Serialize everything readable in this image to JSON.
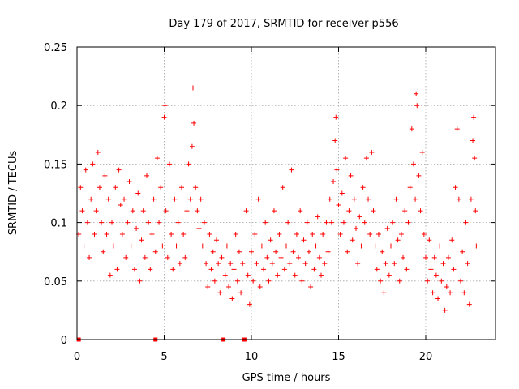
{
  "chart_data": {
    "type": "scatter",
    "title": "Day 179 of 2017, SRMTID for receiver p556",
    "xlabel": "GPS time / hours",
    "ylabel": "SRMTID / TECUs",
    "xlim": [
      0,
      24
    ],
    "ylim": [
      0,
      0.25
    ],
    "xticks": [
      0,
      5,
      10,
      15,
      20
    ],
    "xtick_labels": [
      "0",
      "5",
      "10",
      "15",
      "20"
    ],
    "yticks": [
      0,
      0.05,
      0.1,
      0.15,
      0.2,
      0.25
    ],
    "ytick_labels": [
      "0",
      "0.05",
      "0.1",
      "0.15",
      "0.2",
      "0.25"
    ],
    "grid": true,
    "marker": "+",
    "color": "#ff0000",
    "zero_markers_x": [
      0.1,
      4.5,
      8.4,
      9.6
    ],
    "series": [
      {
        "name": "SRMTID",
        "points": [
          [
            0.1,
            0.09
          ],
          [
            0.2,
            0.13
          ],
          [
            0.3,
            0.11
          ],
          [
            0.4,
            0.08
          ],
          [
            0.5,
            0.145
          ],
          [
            0.6,
            0.1
          ],
          [
            0.7,
            0.07
          ],
          [
            0.8,
            0.12
          ],
          [
            0.9,
            0.15
          ],
          [
            1.0,
            0.09
          ],
          [
            1.1,
            0.11
          ],
          [
            1.2,
            0.16
          ],
          [
            1.3,
            0.13
          ],
          [
            1.4,
            0.1
          ],
          [
            1.5,
            0.075
          ],
          [
            1.6,
            0.14
          ],
          [
            1.7,
            0.09
          ],
          [
            1.8,
            0.12
          ],
          [
            1.9,
            0.055
          ],
          [
            2.0,
            0.1
          ],
          [
            2.1,
            0.08
          ],
          [
            2.2,
            0.13
          ],
          [
            2.3,
            0.06
          ],
          [
            2.4,
            0.145
          ],
          [
            2.5,
            0.115
          ],
          [
            2.6,
            0.09
          ],
          [
            2.7,
            0.12
          ],
          [
            2.8,
            0.07
          ],
          [
            2.9,
            0.1
          ],
          [
            3.0,
            0.135
          ],
          [
            3.1,
            0.08
          ],
          [
            3.2,
            0.11
          ],
          [
            3.3,
            0.06
          ],
          [
            3.4,
            0.095
          ],
          [
            3.5,
            0.125
          ],
          [
            3.6,
            0.05
          ],
          [
            3.7,
            0.085
          ],
          [
            3.8,
            0.11
          ],
          [
            3.9,
            0.07
          ],
          [
            4.0,
            0.14
          ],
          [
            4.1,
            0.1
          ],
          [
            4.2,
            0.06
          ],
          [
            4.3,
            0.09
          ],
          [
            4.4,
            0.12
          ],
          [
            4.5,
            0.075
          ],
          [
            4.6,
            0.155
          ],
          [
            4.7,
            0.1
          ],
          [
            4.8,
            0.13
          ],
          [
            4.9,
            0.08
          ],
          [
            5.0,
            0.19
          ],
          [
            5.05,
            0.2
          ],
          [
            5.1,
            0.11
          ],
          [
            5.2,
            0.07
          ],
          [
            5.3,
            0.15
          ],
          [
            5.4,
            0.09
          ],
          [
            5.5,
            0.06
          ],
          [
            5.6,
            0.12
          ],
          [
            5.7,
            0.08
          ],
          [
            5.8,
            0.1
          ],
          [
            5.9,
            0.065
          ],
          [
            6.0,
            0.13
          ],
          [
            6.1,
            0.09
          ],
          [
            6.2,
            0.07
          ],
          [
            6.3,
            0.11
          ],
          [
            6.4,
            0.15
          ],
          [
            6.5,
            0.12
          ],
          [
            6.6,
            0.165
          ],
          [
            6.65,
            0.215
          ],
          [
            6.7,
            0.185
          ],
          [
            6.8,
            0.13
          ],
          [
            6.9,
            0.11
          ],
          [
            7.0,
            0.095
          ],
          [
            7.1,
            0.12
          ],
          [
            7.2,
            0.08
          ],
          [
            7.3,
            0.1
          ],
          [
            7.4,
            0.065
          ],
          [
            7.5,
            0.045
          ],
          [
            7.6,
            0.09
          ],
          [
            7.7,
            0.06
          ],
          [
            7.8,
            0.075
          ],
          [
            7.9,
            0.05
          ],
          [
            8.0,
            0.085
          ],
          [
            8.1,
            0.065
          ],
          [
            8.2,
            0.04
          ],
          [
            8.3,
            0.07
          ],
          [
            8.5,
            0.055
          ],
          [
            8.6,
            0.08
          ],
          [
            8.7,
            0.045
          ],
          [
            8.8,
            0.065
          ],
          [
            8.9,
            0.035
          ],
          [
            9.0,
            0.06
          ],
          [
            9.1,
            0.09
          ],
          [
            9.2,
            0.05
          ],
          [
            9.3,
            0.075
          ],
          [
            9.4,
            0.04
          ],
          [
            9.5,
            0.065
          ],
          [
            9.7,
            0.11
          ],
          [
            9.8,
            0.055
          ],
          [
            9.9,
            0.03
          ],
          [
            10.0,
            0.075
          ],
          [
            10.1,
            0.05
          ],
          [
            10.2,
            0.09
          ],
          [
            10.3,
            0.065
          ],
          [
            10.4,
            0.12
          ],
          [
            10.5,
            0.045
          ],
          [
            10.6,
            0.08
          ],
          [
            10.7,
            0.06
          ],
          [
            10.8,
            0.1
          ],
          [
            10.9,
            0.07
          ],
          [
            11.0,
            0.05
          ],
          [
            11.1,
            0.085
          ],
          [
            11.2,
            0.065
          ],
          [
            11.3,
            0.11
          ],
          [
            11.4,
            0.075
          ],
          [
            11.5,
            0.055
          ],
          [
            11.6,
            0.09
          ],
          [
            11.7,
            0.07
          ],
          [
            11.8,
            0.13
          ],
          [
            11.9,
            0.06
          ],
          [
            12.0,
            0.08
          ],
          [
            12.1,
            0.1
          ],
          [
            12.2,
            0.065
          ],
          [
            12.3,
            0.145
          ],
          [
            12.4,
            0.075
          ],
          [
            12.5,
            0.055
          ],
          [
            12.6,
            0.09
          ],
          [
            12.7,
            0.07
          ],
          [
            12.8,
            0.11
          ],
          [
            12.9,
            0.05
          ],
          [
            13.0,
            0.085
          ],
          [
            13.1,
            0.065
          ],
          [
            13.2,
            0.1
          ],
          [
            13.3,
            0.075
          ],
          [
            13.4,
            0.045
          ],
          [
            13.5,
            0.09
          ],
          [
            13.6,
            0.06
          ],
          [
            13.7,
            0.08
          ],
          [
            13.8,
            0.105
          ],
          [
            13.9,
            0.07
          ],
          [
            14.0,
            0.055
          ],
          [
            14.1,
            0.09
          ],
          [
            14.2,
            0.065
          ],
          [
            14.3,
            0.1
          ],
          [
            14.4,
            0.075
          ],
          [
            14.5,
            0.12
          ],
          [
            14.6,
            0.1
          ],
          [
            14.7,
            0.135
          ],
          [
            14.8,
            0.17
          ],
          [
            14.85,
            0.19
          ],
          [
            14.9,
            0.145
          ],
          [
            15.0,
            0.115
          ],
          [
            15.1,
            0.09
          ],
          [
            15.2,
            0.125
          ],
          [
            15.3,
            0.1
          ],
          [
            15.4,
            0.155
          ],
          [
            15.5,
            0.075
          ],
          [
            15.6,
            0.11
          ],
          [
            15.7,
            0.14
          ],
          [
            15.8,
            0.085
          ],
          [
            15.9,
            0.12
          ],
          [
            16.0,
            0.095
          ],
          [
            16.1,
            0.065
          ],
          [
            16.2,
            0.105
          ],
          [
            16.3,
            0.08
          ],
          [
            16.4,
            0.13
          ],
          [
            16.5,
            0.1
          ],
          [
            16.6,
            0.155
          ],
          [
            16.7,
            0.12
          ],
          [
            16.8,
            0.09
          ],
          [
            16.9,
            0.16
          ],
          [
            17.0,
            0.11
          ],
          [
            17.1,
            0.08
          ],
          [
            17.2,
            0.06
          ],
          [
            17.3,
            0.09
          ],
          [
            17.4,
            0.05
          ],
          [
            17.5,
            0.075
          ],
          [
            17.6,
            0.04
          ],
          [
            17.7,
            0.065
          ],
          [
            17.8,
            0.095
          ],
          [
            17.9,
            0.055
          ],
          [
            18.0,
            0.08
          ],
          [
            18.1,
            0.1
          ],
          [
            18.2,
            0.065
          ],
          [
            18.3,
            0.12
          ],
          [
            18.4,
            0.085
          ],
          [
            18.5,
            0.05
          ],
          [
            18.6,
            0.09
          ],
          [
            18.7,
            0.07
          ],
          [
            18.8,
            0.11
          ],
          [
            18.9,
            0.06
          ],
          [
            19.0,
            0.1
          ],
          [
            19.1,
            0.13
          ],
          [
            19.2,
            0.18
          ],
          [
            19.3,
            0.15
          ],
          [
            19.4,
            0.12
          ],
          [
            19.45,
            0.21
          ],
          [
            19.5,
            0.2
          ],
          [
            19.6,
            0.14
          ],
          [
            19.7,
            0.11
          ],
          [
            19.8,
            0.16
          ],
          [
            19.9,
            0.09
          ],
          [
            20.0,
            0.07
          ],
          [
            20.1,
            0.05
          ],
          [
            20.2,
            0.085
          ],
          [
            20.3,
            0.06
          ],
          [
            20.4,
            0.04
          ],
          [
            20.5,
            0.07
          ],
          [
            20.6,
            0.055
          ],
          [
            20.7,
            0.035
          ],
          [
            20.8,
            0.08
          ],
          [
            20.9,
            0.05
          ],
          [
            21.0,
            0.065
          ],
          [
            21.1,
            0.025
          ],
          [
            21.2,
            0.045
          ],
          [
            21.3,
            0.07
          ],
          [
            21.4,
            0.04
          ],
          [
            21.5,
            0.085
          ],
          [
            21.6,
            0.06
          ],
          [
            21.7,
            0.13
          ],
          [
            21.8,
            0.18
          ],
          [
            21.9,
            0.12
          ],
          [
            22.0,
            0.05
          ],
          [
            22.1,
            0.075
          ],
          [
            22.2,
            0.04
          ],
          [
            22.3,
            0.1
          ],
          [
            22.4,
            0.065
          ],
          [
            22.5,
            0.03
          ],
          [
            22.6,
            0.12
          ],
          [
            22.7,
            0.17
          ],
          [
            22.75,
            0.19
          ],
          [
            22.8,
            0.155
          ],
          [
            22.85,
            0.11
          ],
          [
            22.9,
            0.08
          ]
        ]
      }
    ]
  }
}
